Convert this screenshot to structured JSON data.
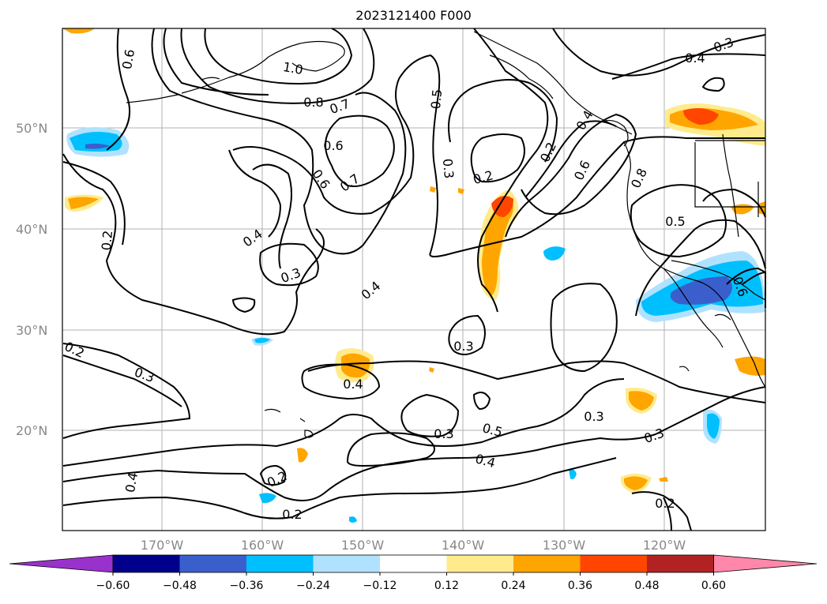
{
  "title": "2023121400 F000",
  "lat_labels": [
    "50°N",
    "40°N",
    "30°N",
    "20°N"
  ],
  "lon_labels": [
    "170°W",
    "160°W",
    "150°W",
    "140°W",
    "130°W",
    "120°W"
  ],
  "contour_labels": [
    "0.6",
    "1.0",
    "0.8",
    "0.7",
    "0.6",
    "0.6",
    "0.7",
    "0.5",
    "0.3",
    "0.2",
    "0.2",
    "0.3",
    "0.4",
    "0.4",
    "0.3",
    "0.3",
    "0.2",
    "0.4",
    "0.3",
    "0.5",
    "0.4",
    "0.3",
    "0.3",
    "0.4",
    "0.2",
    "0.2",
    "0.2",
    "0.2",
    "0.6",
    "0.8",
    "0.5",
    "0.6",
    "0.3",
    "0.4",
    "0.4",
    "0.3"
  ],
  "colorbar": {
    "ticks": [
      "−0.60",
      "−0.48",
      "−0.36",
      "−0.24",
      "−0.12",
      "0.12",
      "0.24",
      "0.36",
      "0.48",
      "0.60"
    ],
    "colors": [
      "#9932cc",
      "#00008b",
      "#3a5fcd",
      "#00bfff",
      "#b0e2ff",
      "#ffffff",
      "#ffeb8c",
      "#ffa500",
      "#ff4500",
      "#b22222",
      "#ff88aa"
    ]
  }
}
